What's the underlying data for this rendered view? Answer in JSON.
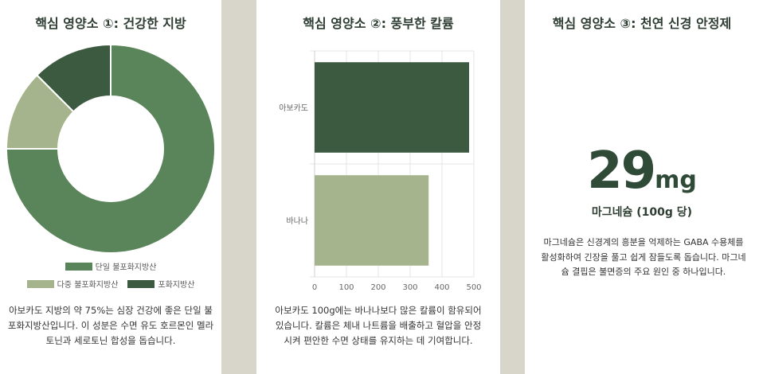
{
  "cards": [
    {
      "title": "핵심 영양소 ①: 건강한 지방",
      "description": "아보카도 지방의 약 75%는 심장 건강에 좋은 단일 불포화지방산입니다. 이 성분은 수면 유도 호르몬인 멜라토닌과 세로토닌 합성을 돕습니다."
    },
    {
      "title": "핵심 영양소 ②: 풍부한 칼륨",
      "description": "아보카도 100g에는 바나나보다 많은 칼륨이 함유되어 있습니다. 칼륨은 체내 나트륨을 배출하고 혈압을 안정시켜 편안한 수면 상태를 유지하는 데 기여합니다."
    },
    {
      "title": "핵심 영양소 ③: 천연 신경 안정제",
      "value": "29",
      "unit": "mg",
      "subtitle": "마그네슘 (100g 당)",
      "description": "마그네슘은 신경계의 흥분을 억제하는 GABA 수용체를 활성화하여 긴장을 풀고 쉽게 잠들도록 돕습니다. 마그네슘 결핍은 불면증의 주요 원인 중 하나입니다."
    }
  ],
  "chart_data": [
    {
      "type": "pie",
      "donut": true,
      "categories": [
        "단일 불포화지방산",
        "다중 불포화지방산",
        "포화지방산"
      ],
      "values": [
        75,
        12.5,
        12.5
      ],
      "colors": [
        "#5a8459",
        "#a5b48c",
        "#3b5a3f"
      ],
      "legend": "bottom"
    },
    {
      "type": "bar",
      "orientation": "horizontal",
      "categories": [
        "아보카도",
        "바나나"
      ],
      "values": [
        485,
        358
      ],
      "colors": [
        "#3b5a3f",
        "#a5b48c"
      ],
      "xlim": [
        0,
        500
      ],
      "xticks": [
        "0",
        "100",
        "200",
        "300",
        "400",
        "500"
      ],
      "grid": true
    }
  ]
}
